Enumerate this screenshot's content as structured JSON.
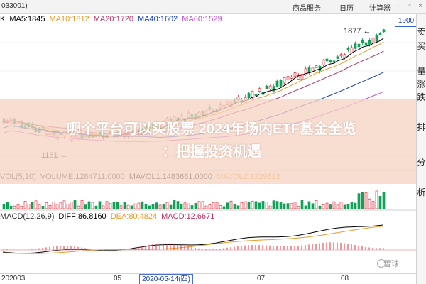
{
  "window": {
    "stock_code": "033001)",
    "tabs": [
      "商品服务",
      "日历",
      "计算器"
    ]
  },
  "price_box": "1900",
  "ma_indicators": [
    {
      "label": "K",
      "color": "#000000"
    },
    {
      "label": "MA5:1845",
      "color": "#000000"
    },
    {
      "label": "MA10:1812",
      "color": "#e89b2a"
    },
    {
      "label": "MA20:1720",
      "color": "#b8336a"
    },
    {
      "label": "MA40:1602",
      "color": "#1a3fae"
    },
    {
      "label": "MA60:1529",
      "color": "#c24fd6"
    }
  ],
  "price_annotations": {
    "high": "1877",
    "low": "1161"
  },
  "volume_indicators": [
    {
      "label": "VOL(5,10)",
      "color": "#333333"
    },
    {
      "label": "VOLUME:1284711.0000",
      "color": "#333333"
    },
    {
      "label": "MAVOL1:1483681.0000",
      "color": "#000000"
    },
    {
      "label": "MAVOL2:1229812",
      "color": "#e89b2a"
    }
  ],
  "macd_indicators": [
    {
      "label": "MACD(12,26,9)",
      "color": "#333333"
    },
    {
      "label": "DIFF:86.8160",
      "color": "#000000"
    },
    {
      "label": "DEA:80.4824",
      "color": "#e89b2a"
    },
    {
      "label": "MACD:12.6671",
      "color": "#b8336a"
    }
  ],
  "x_axis": {
    "labels": [
      "202003",
      "05",
      "07",
      "08"
    ],
    "selected_date": "2020-05-14(四)"
  },
  "sidebar": {
    "chars": [
      "卖",
      "买",
      "量",
      "涨",
      "跌",
      "排",
      "分",
      "析"
    ]
  },
  "headline": {
    "line1": "哪个平台可以买股票 2024年场内ETF基金全览",
    "line2": "：把握投资机遇"
  },
  "watermark": "雪球",
  "colors": {
    "up": "#e0303a",
    "down": "#14a058",
    "ma5": "#000000",
    "ma10": "#e89b2a",
    "ma20": "#b8336a",
    "ma40": "#1a3fae",
    "ma60": "#c24fd6"
  }
}
